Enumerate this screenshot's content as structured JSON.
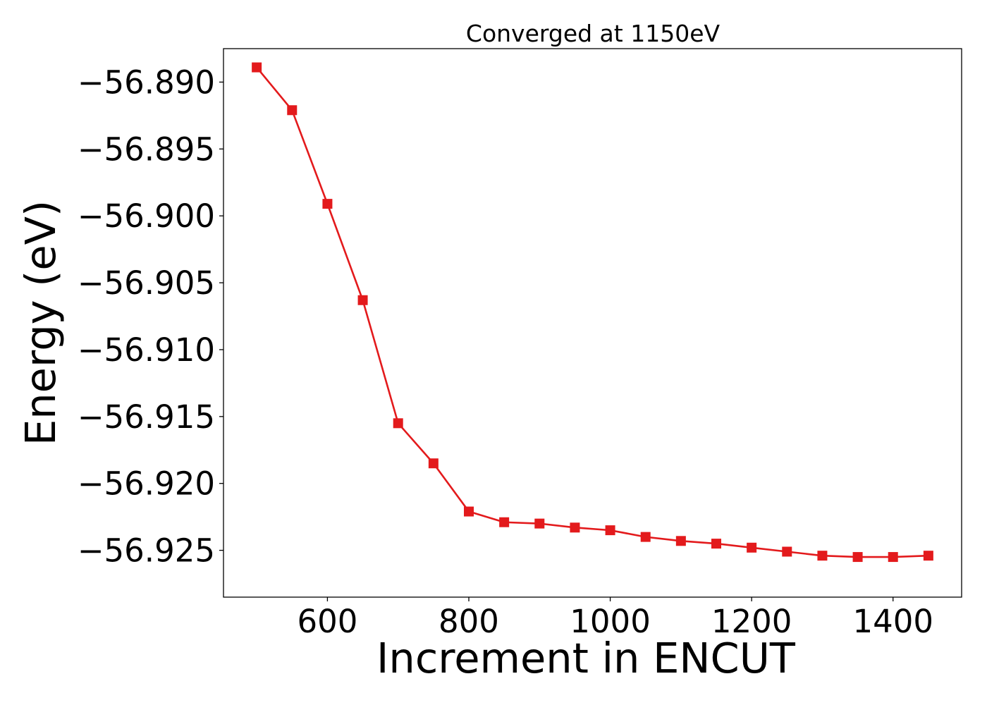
{
  "chart_data": {
    "type": "line",
    "title": "Converged at 1150eV",
    "xlabel": "Increment in ENCUT",
    "ylabel": "Energy (eV)",
    "xlim": [
      453,
      1497
    ],
    "ylim": [
      -56.9285,
      -56.8875
    ],
    "xticks": [
      600,
      800,
      1000,
      1200,
      1400
    ],
    "yticks": [
      -56.89,
      -56.895,
      -56.9,
      -56.905,
      -56.91,
      -56.915,
      -56.92,
      -56.925
    ],
    "ytick_labels": [
      "−56.890",
      "−56.895",
      "−56.900",
      "−56.905",
      "−56.910",
      "−56.915",
      "−56.920",
      "−56.925"
    ],
    "grid": false,
    "legend": "none",
    "series": [
      {
        "color": "#e31a1c",
        "marker": "square",
        "x": [
          500,
          550,
          600,
          650,
          700,
          750,
          800,
          850,
          900,
          950,
          1000,
          1050,
          1100,
          1150,
          1200,
          1250,
          1300,
          1350,
          1400,
          1450
        ],
        "y": [
          -56.8889,
          -56.8921,
          -56.8991,
          -56.9063,
          -56.9155,
          -56.9185,
          -56.9221,
          -56.9229,
          -56.923,
          -56.9233,
          -56.9235,
          -56.924,
          -56.9243,
          -56.9245,
          -56.9248,
          -56.9251,
          -56.9254,
          -56.9255,
          -56.9255,
          -56.9254
        ]
      }
    ]
  }
}
